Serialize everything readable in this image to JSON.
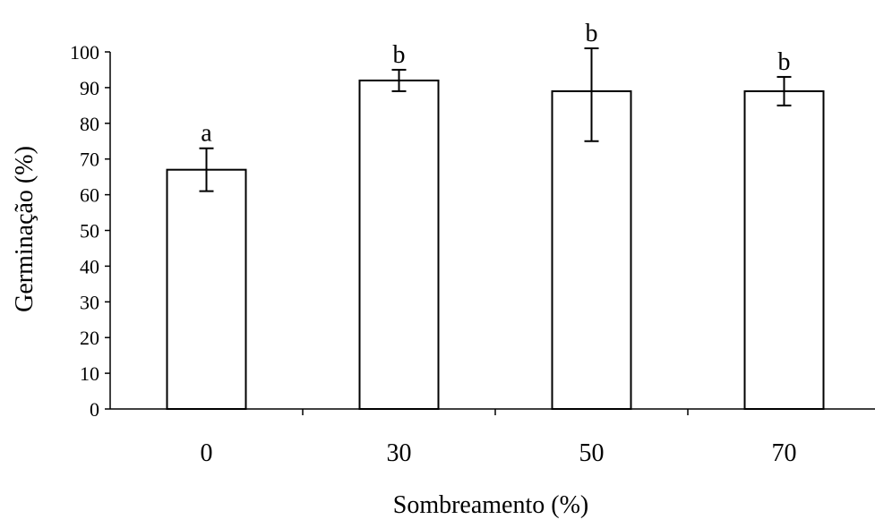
{
  "chart_data": {
    "type": "bar",
    "categories": [
      "0",
      "30",
      "50",
      "70"
    ],
    "values": [
      67,
      92,
      89,
      89
    ],
    "error_upper": [
      73,
      95,
      101,
      93
    ],
    "error_lower": [
      61,
      89,
      75,
      85
    ],
    "significance_labels": [
      "a",
      "b",
      "b",
      "b"
    ],
    "title": "",
    "xlabel": "Sombreamento (%)",
    "ylabel": "Germinação (%)",
    "ylim": [
      0,
      100
    ],
    "yticks": [
      0,
      10,
      20,
      30,
      40,
      50,
      60,
      70,
      80,
      90,
      100
    ],
    "grid": false,
    "legend": "none",
    "colors": {
      "bar_fill": "#ffffff",
      "bar_stroke": "#000000",
      "axis": "#000000"
    }
  }
}
